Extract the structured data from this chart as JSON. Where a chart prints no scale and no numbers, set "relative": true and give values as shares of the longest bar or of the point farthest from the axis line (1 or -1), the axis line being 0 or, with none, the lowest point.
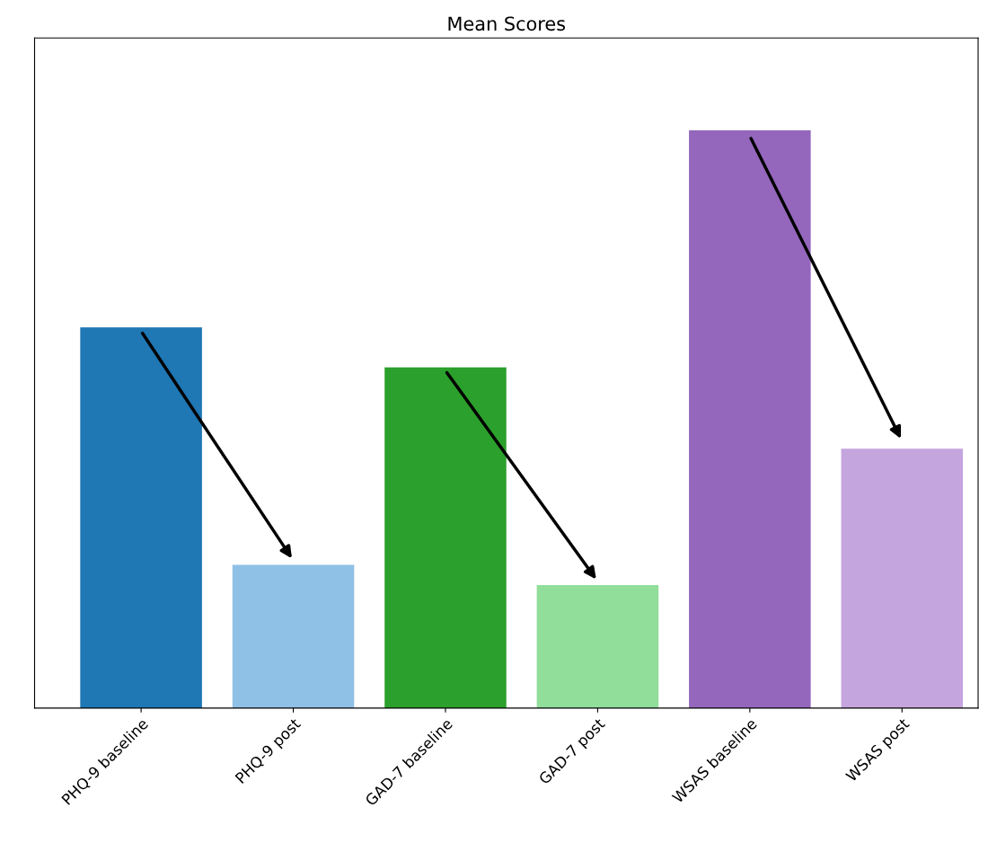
{
  "chart_data": {
    "type": "bar",
    "title": "Mean Scores",
    "relative": true,
    "categories": [
      "PHQ-9 baseline",
      "PHQ-9 post",
      "GAD-7 baseline",
      "GAD-7 post",
      "WSAS baseline",
      "WSAS post"
    ],
    "values": [
      0.659,
      0.248,
      0.59,
      0.213,
      1,
      0.449
    ],
    "colors": [
      "#1f77b4",
      "#8fc0e6",
      "#2ca02c",
      "#90de9a",
      "#9467bd",
      "#c5a5de"
    ],
    "grid": false
  }
}
